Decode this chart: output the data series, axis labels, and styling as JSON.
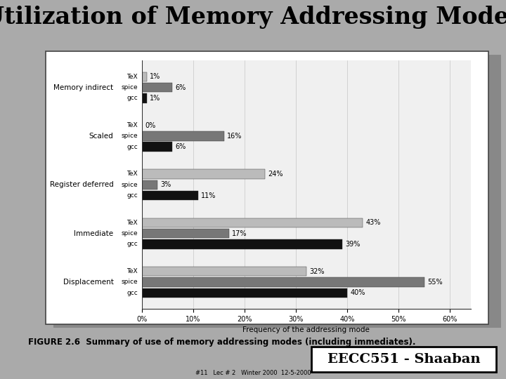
{
  "title": "Utilization of Memory Addressing Modes",
  "figure_caption": "FIGURE 2.6  Summary of use of memory addressing modes (including immediates).",
  "footer": "#11   Lec # 2   Winter 2000  12-5-2000",
  "eecc_label": "EECC551 - Shaaban",
  "xlabel": "Frequency of the addressing mode",
  "xticks": [
    0,
    10,
    20,
    30,
    40,
    50,
    60
  ],
  "xtick_labels": [
    "0%",
    "10%",
    "20%",
    "30%",
    "40%",
    "50%",
    "60%"
  ],
  "categories": [
    "Displacement",
    "Immediate",
    "Register deferred",
    "Scaled",
    "Memory indirect"
  ],
  "sub_labels": [
    "gcc",
    "spice",
    "TeX"
  ],
  "colors": [
    "#111111",
    "#777777",
    "#bbbbbb"
  ],
  "data": [
    [
      40,
      55,
      32
    ],
    [
      39,
      17,
      43
    ],
    [
      11,
      3,
      24
    ],
    [
      6,
      16,
      0
    ],
    [
      1,
      6,
      1
    ]
  ],
  "data_labels": [
    [
      "40%",
      "55%",
      "32%"
    ],
    [
      "39%",
      "17%",
      "43%"
    ],
    [
      "11%",
      "3%",
      "24%"
    ],
    [
      "6%",
      "16%",
      "0%"
    ],
    [
      "1%",
      "6%",
      "1%"
    ]
  ],
  "bar_height": 0.22,
  "outer_bg": "#aaaaaa",
  "white_bg": "#ffffff",
  "chart_inner_bg": "#f0f0f0",
  "title_fontsize": 24,
  "axis_fontsize": 7,
  "label_fontsize": 7.5,
  "sublabel_fontsize": 6.5,
  "caption_fontsize": 8.5,
  "eecc_fontsize": 14,
  "footer_fontsize": 6
}
